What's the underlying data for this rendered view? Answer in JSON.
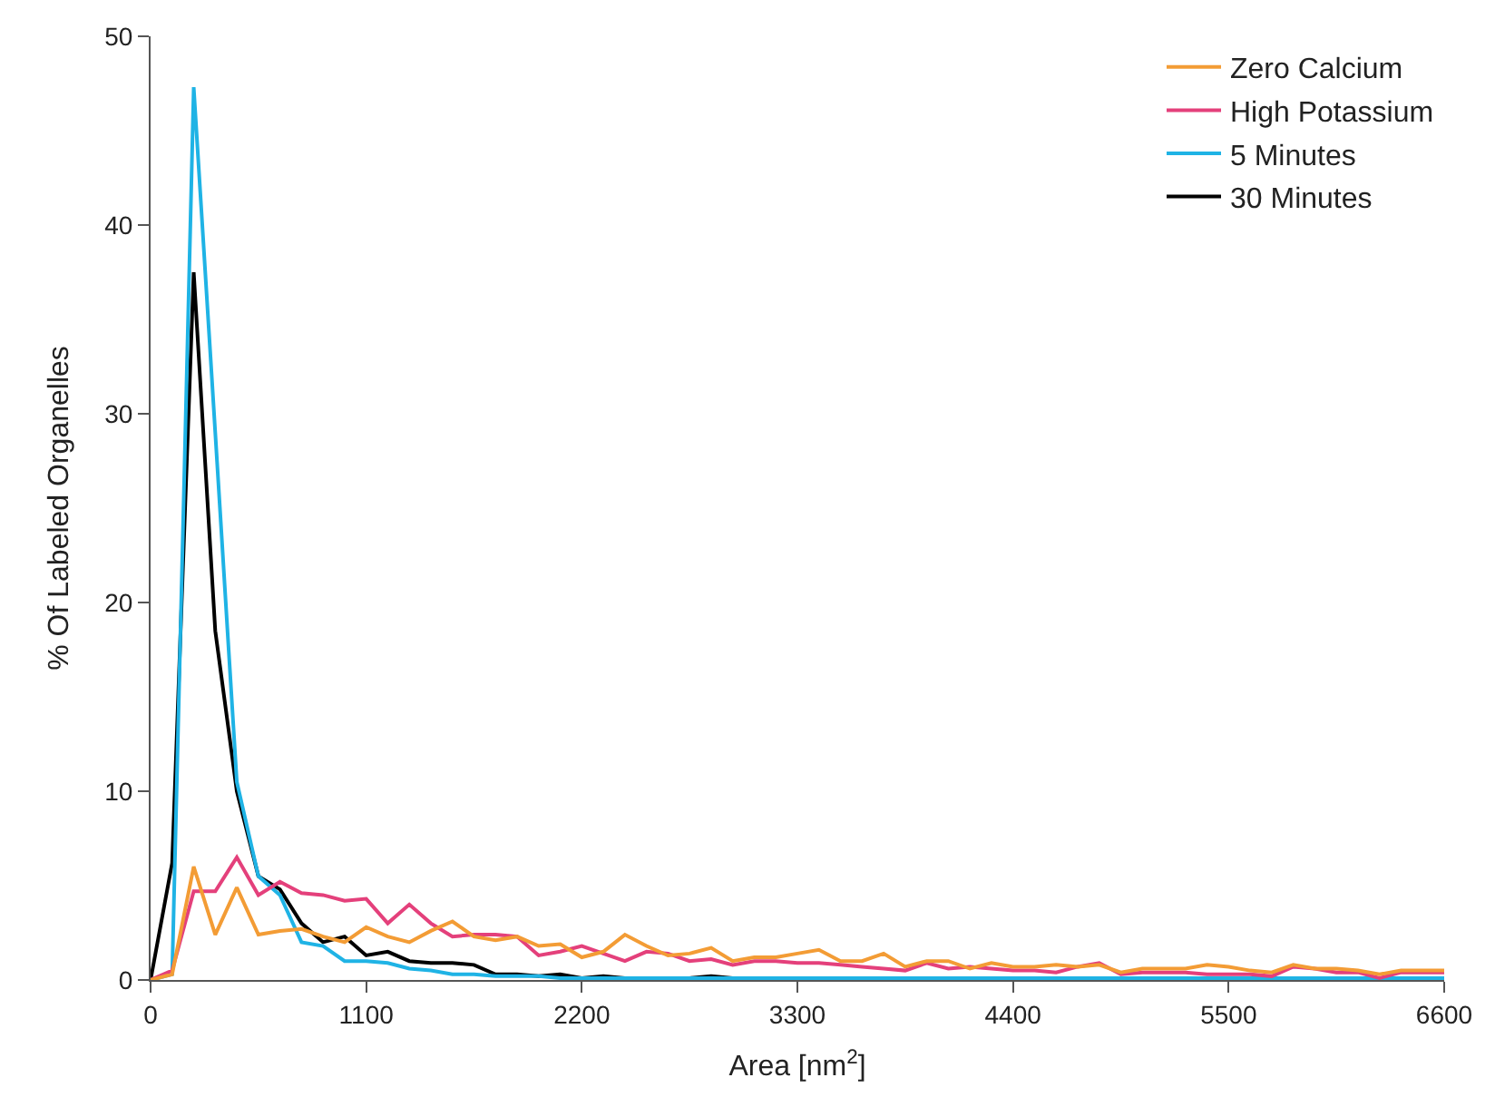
{
  "chart_data": {
    "type": "line",
    "xlabel": "Area [nm$^{2}$]",
    "ylabel": "% Of Labeled Organelles",
    "x": [
      0,
      110,
      220,
      330,
      440,
      550,
      660,
      770,
      880,
      990,
      1100,
      1210,
      1320,
      1430,
      1540,
      1650,
      1760,
      1870,
      1980,
      2090,
      2200,
      2310,
      2420,
      2530,
      2640,
      2750,
      2860,
      2970,
      3080,
      3190,
      3300,
      3410,
      3520,
      3630,
      3740,
      3850,
      3960,
      4070,
      4180,
      4290,
      4400,
      4510,
      4620,
      4730,
      4840,
      4950,
      5060,
      5170,
      5280,
      5390,
      5500,
      5610,
      5720,
      5830,
      5940,
      6050,
      6160,
      6270,
      6380,
      6490,
      6600
    ],
    "series": [
      {
        "name": "Zero Calcium",
        "color": "#f39c35",
        "values": [
          0,
          0.3,
          6.0,
          2.4,
          4.9,
          2.4,
          2.6,
          2.7,
          2.3,
          2.0,
          2.8,
          2.3,
          2.0,
          2.6,
          3.1,
          2.3,
          2.1,
          2.3,
          1.8,
          1.9,
          1.2,
          1.5,
          2.4,
          1.8,
          1.3,
          1.4,
          1.7,
          1.0,
          1.2,
          1.2,
          1.4,
          1.6,
          1.0,
          1.0,
          1.4,
          0.7,
          1.0,
          1.0,
          0.6,
          0.9,
          0.7,
          0.7,
          0.8,
          0.7,
          0.8,
          0.4,
          0.6,
          0.6,
          0.6,
          0.8,
          0.7,
          0.5,
          0.4,
          0.8,
          0.6,
          0.6,
          0.5,
          0.3,
          0.5,
          0.5,
          0.5
        ]
      },
      {
        "name": "High Potassium",
        "color": "#e4407b",
        "values": [
          0,
          0.5,
          4.7,
          4.7,
          6.5,
          4.5,
          5.2,
          4.6,
          4.5,
          4.2,
          4.3,
          3.0,
          4.0,
          3.0,
          2.3,
          2.4,
          2.4,
          2.3,
          1.3,
          1.5,
          1.8,
          1.4,
          1.0,
          1.5,
          1.4,
          1.0,
          1.1,
          0.8,
          1.0,
          1.0,
          0.9,
          0.9,
          0.8,
          0.7,
          0.6,
          0.5,
          0.9,
          0.6,
          0.7,
          0.6,
          0.5,
          0.5,
          0.4,
          0.7,
          0.9,
          0.3,
          0.4,
          0.4,
          0.4,
          0.3,
          0.3,
          0.3,
          0.2,
          0.7,
          0.6,
          0.4,
          0.4,
          0.1,
          0.4,
          0.4,
          0.4
        ]
      },
      {
        "name": "5 Minutes",
        "color": "#1fb3e5",
        "values": [
          0,
          0.3,
          47.3,
          29,
          10.5,
          5.5,
          4.5,
          2.0,
          1.8,
          1.0,
          1.0,
          0.9,
          0.6,
          0.5,
          0.3,
          0.3,
          0.2,
          0.2,
          0.2,
          0.1,
          0.1,
          0.1,
          0.1,
          0.1,
          0.1,
          0.1,
          0.1,
          0.1,
          0.1,
          0.1,
          0.1,
          0.1,
          0.1,
          0.1,
          0.1,
          0.1,
          0.1,
          0.1,
          0.1,
          0.1,
          0.1,
          0.1,
          0.1,
          0.1,
          0.1,
          0.1,
          0.1,
          0.1,
          0.1,
          0.1,
          0.1,
          0.1,
          0.1,
          0.1,
          0.1,
          0.1,
          0.1,
          0.1,
          0.1,
          0.1,
          0.1
        ]
      },
      {
        "name": "30 Minutes",
        "color": "#000000",
        "values": [
          0,
          6.2,
          37.5,
          18.5,
          10,
          5.5,
          4.8,
          3.0,
          2.0,
          2.3,
          1.3,
          1.5,
          1.0,
          0.9,
          0.9,
          0.8,
          0.3,
          0.3,
          0.2,
          0.3,
          0.1,
          0.2,
          0.1,
          0.1,
          0.1,
          0.1,
          0.2,
          0.1,
          0.1,
          0.1,
          0.1,
          0.1,
          0.1,
          0.1,
          0.1,
          0.1,
          0.1,
          0.1,
          0.1,
          0.1,
          0.1,
          0.1,
          0.1,
          0.1,
          0.1,
          0.1,
          0.1,
          0.1,
          0.1,
          0.1,
          0.1,
          0.1,
          0.1,
          0.1,
          0.1,
          0.1,
          0.1,
          0.1,
          0.1,
          0.1,
          0.1
        ]
      }
    ],
    "xlim": [
      0,
      6600
    ],
    "xticks": [
      0,
      1100,
      2200,
      3300,
      4400,
      5500,
      6600
    ],
    "ylim": [
      0,
      50
    ],
    "yticks": [
      0,
      10,
      20,
      30,
      40,
      50
    ],
    "legend": "top right",
    "marker": "none",
    "line_style": "solid"
  }
}
